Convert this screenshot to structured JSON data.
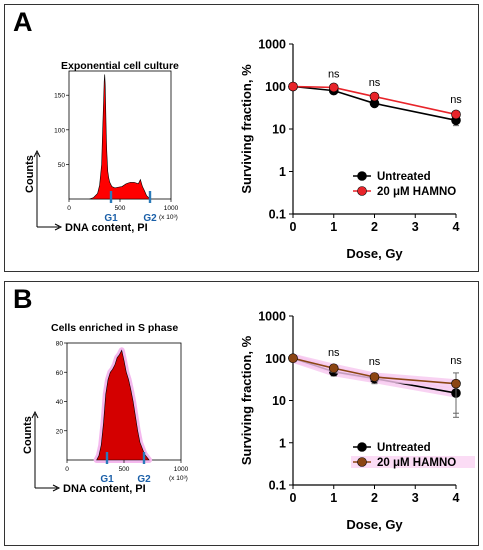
{
  "panels": [
    {
      "label": "A",
      "histogram": {
        "title": "Exponential cell culture",
        "ylabel": "Counts",
        "xlabel": "DNA content, PI",
        "x_ticks": [
          "0",
          "500",
          "1000",
          "(x 10³)"
        ],
        "y_ticks": [
          "150",
          "100",
          "50"
        ],
        "markers": [
          "G1",
          "G2"
        ]
      },
      "survival": {
        "ylabel": "Surviving fraction, %",
        "xlabel": "Dose, Gy",
        "annotations": [
          "ns",
          "ns",
          "ns"
        ]
      }
    },
    {
      "label": "B",
      "histogram": {
        "title": "Cells enriched in S phase",
        "ylabel": "Counts",
        "xlabel": "DNA content, PI",
        "x_ticks": [
          "0",
          "500",
          "1000",
          "(x 10³)"
        ],
        "y_ticks": [
          "80",
          "60",
          "40",
          "20"
        ],
        "markers": [
          "G1",
          "G2"
        ]
      },
      "survival": {
        "ylabel": "Surviving fraction, %",
        "xlabel": "Dose, Gy",
        "annotations": [
          "ns",
          "ns",
          "ns"
        ]
      }
    }
  ],
  "chart_data": [
    {
      "type": "area",
      "panel": "A",
      "title": "Exponential cell culture",
      "xlabel": "DNA content, PI",
      "ylabel": "Counts",
      "xlim": [
        0,
        1000
      ],
      "ylim": [
        0,
        185
      ],
      "x": [
        200,
        240,
        280,
        300,
        320,
        330,
        340,
        345,
        350,
        355,
        360,
        365,
        370,
        380,
        390,
        400,
        420,
        450,
        480,
        520,
        560,
        600,
        640,
        680,
        700,
        720,
        740,
        760,
        780,
        800
      ],
      "y": [
        0,
        2,
        8,
        20,
        50,
        100,
        145,
        170,
        180,
        165,
        130,
        95,
        70,
        40,
        30,
        24,
        18,
        16,
        17,
        18,
        22,
        24,
        24,
        22,
        28,
        18,
        12,
        5,
        2,
        0
      ],
      "color": "#ff0000"
    },
    {
      "type": "line",
      "panel": "A",
      "xlabel": "Dose, Gy",
      "ylabel": "Surviving fraction, %",
      "yscale": "log",
      "ylim": [
        0.1,
        1000
      ],
      "xlim": [
        0,
        4
      ],
      "x_ticks": [
        0,
        1,
        2,
        3,
        4
      ],
      "y_ticks": [
        "0.1",
        "1",
        "10",
        "100",
        "1000"
      ],
      "legend": "bottom-right",
      "series": [
        {
          "name": "Untreated",
          "color": "#000000",
          "x": [
            0,
            1,
            2,
            4
          ],
          "y": [
            100,
            80,
            40,
            16
          ],
          "err": [
            0,
            8,
            4,
            4
          ]
        },
        {
          "name": "20 μM HAMNO",
          "color": "#e8242a",
          "x": [
            0,
            1,
            2,
            4
          ],
          "y": [
            100,
            95,
            58,
            22
          ],
          "err": [
            0,
            6,
            5,
            3
          ]
        }
      ],
      "annotations": [
        {
          "x": 1,
          "text": "ns"
        },
        {
          "x": 2,
          "text": "ns"
        },
        {
          "x": 4,
          "text": "ns"
        }
      ]
    },
    {
      "type": "area",
      "panel": "B",
      "title": "Cells enriched in S phase",
      "xlabel": "DNA content, PI",
      "ylabel": "Counts",
      "xlim": [
        0,
        1000
      ],
      "ylim": [
        0,
        80
      ],
      "x": [
        260,
        280,
        300,
        320,
        340,
        360,
        380,
        400,
        420,
        440,
        460,
        480,
        500,
        520,
        540,
        560,
        580,
        600,
        620,
        640,
        660,
        680,
        700,
        720
      ],
      "y": [
        0,
        3,
        10,
        25,
        45,
        55,
        60,
        62,
        65,
        70,
        72,
        75,
        68,
        60,
        55,
        48,
        40,
        30,
        20,
        12,
        8,
        4,
        2,
        0
      ],
      "color": "#d40000"
    },
    {
      "type": "line",
      "panel": "B",
      "xlabel": "Dose, Gy",
      "ylabel": "Surviving fraction, %",
      "yscale": "log",
      "ylim": [
        0.1,
        1000
      ],
      "xlim": [
        0,
        4
      ],
      "x_ticks": [
        0,
        1,
        2,
        3,
        4
      ],
      "y_ticks": [
        "0.1",
        "1",
        "10",
        "100",
        "1000"
      ],
      "legend": "bottom-right",
      "series": [
        {
          "name": "Untreated",
          "color": "#000000",
          "x": [
            0,
            1,
            2,
            4
          ],
          "y": [
            100,
            48,
            33,
            15
          ],
          "err": [
            0,
            10,
            8,
            11
          ]
        },
        {
          "name": "20 μM HAMNO",
          "color": "#8b4513",
          "x": [
            0,
            1,
            2,
            4
          ],
          "y": [
            100,
            58,
            36,
            25
          ],
          "err": [
            0,
            12,
            6,
            20
          ]
        }
      ],
      "annotations": [
        {
          "x": 1,
          "text": "ns"
        },
        {
          "x": 2,
          "text": "ns"
        },
        {
          "x": 4,
          "text": "ns"
        }
      ]
    }
  ]
}
